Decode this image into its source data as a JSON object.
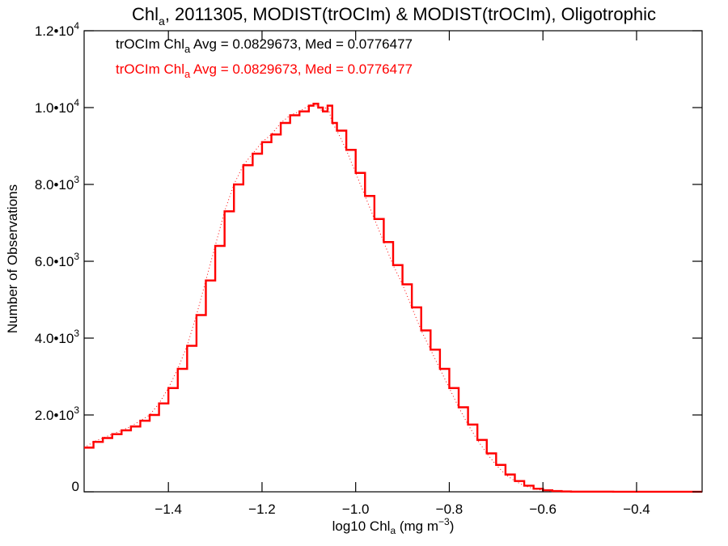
{
  "chart_data": {
    "type": "line",
    "title": {
      "main": "Chl",
      "sub": "a",
      "rest": ", 2011305, MODIST(trOCIm) & MODIST(trOCIm), Oligotrophic"
    },
    "xlabel": {
      "pre": "log10 Chl",
      "sub": "a",
      "mid": " (mg m",
      "sup": "−3",
      "post": ")"
    },
    "ylabel": "Number of Observations",
    "xlim": [
      -1.58,
      -0.26
    ],
    "ylim": [
      0,
      12000
    ],
    "x_ticks": [
      {
        "value": -1.4,
        "label": "−1.4"
      },
      {
        "value": -1.2,
        "label": "−1.2"
      },
      {
        "value": -1.0,
        "label": "−1.0"
      },
      {
        "value": -0.8,
        "label": "−0.8"
      },
      {
        "value": -0.6,
        "label": "−0.6"
      },
      {
        "value": -0.4,
        "label": "−0.4"
      }
    ],
    "y_ticks": [
      {
        "value": 0,
        "mant": "0",
        "exp": ""
      },
      {
        "value": 2000,
        "mant": "2.0•10",
        "exp": "3"
      },
      {
        "value": 4000,
        "mant": "4.0•10",
        "exp": "3"
      },
      {
        "value": 6000,
        "mant": "6.0•10",
        "exp": "3"
      },
      {
        "value": 8000,
        "mant": "8.0•10",
        "exp": "3"
      },
      {
        "value": 10000,
        "mant": "1.0•10",
        "exp": "4"
      },
      {
        "value": 12000,
        "mant": "1.2•10",
        "exp": "4"
      }
    ],
    "legend": [
      {
        "pre": "trOCIm Chl",
        "sub": "a",
        "post": " Avg = 0.0829673, Med = 0.0776477",
        "color": "#000000"
      },
      {
        "pre": "trOCIm Chl",
        "sub": "a",
        "post": " Avg = 0.0829673, Med = 0.0776477",
        "color": "#ff0000"
      }
    ],
    "series": [
      {
        "color": "#ff0000",
        "style": "step",
        "x": [
          -1.58,
          -1.56,
          -1.54,
          -1.52,
          -1.5,
          -1.48,
          -1.46,
          -1.44,
          -1.42,
          -1.4,
          -1.38,
          -1.36,
          -1.34,
          -1.32,
          -1.3,
          -1.28,
          -1.26,
          -1.24,
          -1.22,
          -1.2,
          -1.18,
          -1.16,
          -1.14,
          -1.12,
          -1.1,
          -1.09,
          -1.08,
          -1.07,
          -1.06,
          -1.05,
          -1.04,
          -1.02,
          -1.0,
          -0.98,
          -0.96,
          -0.94,
          -0.92,
          -0.9,
          -0.88,
          -0.86,
          -0.84,
          -0.82,
          -0.8,
          -0.78,
          -0.76,
          -0.74,
          -0.72,
          -0.7,
          -0.68,
          -0.66,
          -0.64,
          -0.62,
          -0.6,
          -0.58,
          -0.56,
          -0.54,
          -0.5,
          -0.45,
          -0.4,
          -0.35,
          -0.3,
          -0.26
        ],
        "y": [
          1150,
          1300,
          1400,
          1500,
          1600,
          1700,
          1850,
          2000,
          2300,
          2700,
          3200,
          3800,
          4600,
          5500,
          6400,
          7300,
          8000,
          8500,
          8800,
          9100,
          9300,
          9600,
          9800,
          9900,
          10050,
          10100,
          10000,
          9900,
          10050,
          9600,
          9400,
          8900,
          8300,
          7700,
          7100,
          6500,
          5900,
          5400,
          4800,
          4200,
          3700,
          3200,
          2700,
          2200,
          1750,
          1350,
          1000,
          700,
          450,
          280,
          160,
          80,
          40,
          20,
          10,
          5,
          3,
          2,
          2,
          2,
          2,
          2
        ]
      },
      {
        "color": "#ff0000",
        "style": "dotted",
        "x": [
          -1.58,
          -1.56,
          -1.54,
          -1.52,
          -1.5,
          -1.48,
          -1.46,
          -1.44,
          -1.42,
          -1.4,
          -1.38,
          -1.36,
          -1.34,
          -1.32,
          -1.3,
          -1.28,
          -1.26,
          -1.24,
          -1.22,
          -1.2,
          -1.18,
          -1.16,
          -1.14,
          -1.12,
          -1.1,
          -1.09,
          -1.08,
          -1.07,
          -1.06,
          -1.05,
          -1.04,
          -1.02,
          -1.0,
          -0.98,
          -0.96,
          -0.94,
          -0.92,
          -0.9,
          -0.88,
          -0.86,
          -0.84,
          -0.82,
          -0.8,
          -0.78,
          -0.76,
          -0.74,
          -0.72,
          -0.7,
          -0.68,
          -0.66,
          -0.64,
          -0.62,
          -0.6,
          -0.58,
          -0.56,
          -0.54,
          -0.5,
          -0.45,
          -0.4,
          -0.35,
          -0.3,
          -0.26
        ],
        "y": [
          1150,
          1300,
          1400,
          1500,
          1600,
          1700,
          1850,
          2000,
          2300,
          2700,
          3200,
          3800,
          4600,
          5500,
          6400,
          7300,
          8000,
          8500,
          8800,
          9100,
          9300,
          9600,
          9800,
          9900,
          10050,
          10100,
          10000,
          9900,
          10050,
          9600,
          9400,
          8900,
          8300,
          7700,
          7100,
          6500,
          5900,
          5400,
          4800,
          4200,
          3700,
          3200,
          2700,
          2200,
          1750,
          1350,
          1000,
          700,
          450,
          280,
          160,
          80,
          40,
          20,
          10,
          5,
          3,
          2,
          2,
          2,
          2,
          2
        ]
      }
    ]
  }
}
